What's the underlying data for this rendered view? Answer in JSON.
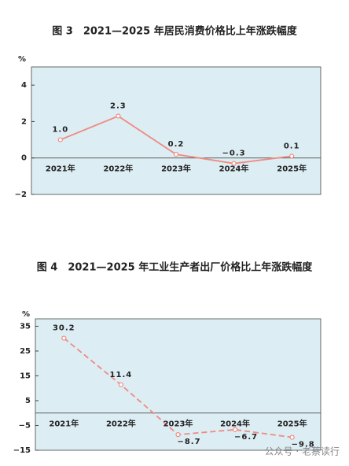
{
  "chart_data": [
    {
      "type": "line",
      "title": "图 3　2021—2025 年居民消费价格比上年涨跌幅度",
      "y_label": "%",
      "categories": [
        "2021年",
        "2022年",
        "2023年",
        "2024年",
        "2025年"
      ],
      "values": [
        1.0,
        2.3,
        0.2,
        -0.3,
        0.1
      ],
      "value_labels": [
        "1.0",
        "2.3",
        "0.2",
        "−0.3",
        "0.1"
      ],
      "ylim": [
        -2,
        5
      ],
      "yticks": [
        {
          "value": -2,
          "label": "−2"
        },
        0,
        2,
        4
      ],
      "color": "#f08a80",
      "line_style": "solid",
      "background": "#dcedf3"
    },
    {
      "type": "line",
      "title": "图 4　2021—2025 年工业生产者出厂价格比上年涨跌幅度",
      "y_label": "%",
      "categories": [
        "2021年",
        "2022年",
        "2023年",
        "2024年",
        "2025年"
      ],
      "values": [
        30.2,
        11.4,
        -8.7,
        -6.7,
        -9.8
      ],
      "value_labels": [
        "30.2",
        "11.4",
        "−8.7",
        "−6.7",
        "−9.8"
      ],
      "ylim": [
        -15,
        38
      ],
      "yticks": [
        {
          "value": -15,
          "label": "−15"
        },
        {
          "value": -5,
          "label": "−5"
        },
        5,
        15,
        25,
        35
      ],
      "color": "#f08a80",
      "line_style": "dashed",
      "background": "#dcedf3",
      "watermark": "公众号 · 老蔡读行"
    }
  ]
}
